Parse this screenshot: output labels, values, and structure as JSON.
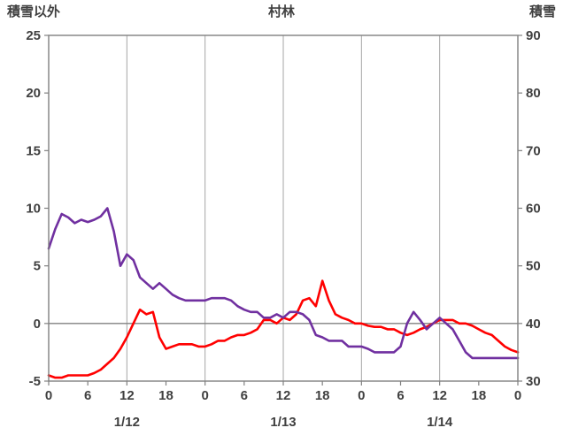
{
  "chart_data": {
    "type": "line",
    "title": "村林",
    "left_axis_label": "積雪以外",
    "right_axis_label": "積雪",
    "left_axis": {
      "min": -5,
      "max": 25,
      "ticks": [
        25,
        20,
        15,
        10,
        5,
        0,
        -5
      ]
    },
    "right_axis": {
      "min": 30,
      "max": 90,
      "ticks": [
        90,
        80,
        70,
        60,
        50,
        40,
        30
      ]
    },
    "x_axis": {
      "min": 0,
      "max": 72,
      "tick_hours": [
        0,
        6,
        12,
        18,
        24,
        30,
        36,
        42,
        48,
        54,
        60,
        66,
        72
      ],
      "tick_labels": [
        "0",
        "6",
        "12",
        "18",
        "0",
        "6",
        "12",
        "18",
        "0",
        "6",
        "12",
        "18",
        "0"
      ],
      "date_labels": [
        {
          "label": "1/12",
          "hour": 12
        },
        {
          "label": "1/13",
          "hour": 36
        },
        {
          "label": "1/14",
          "hour": 60
        }
      ],
      "gridline_hours": [
        12,
        24,
        36,
        48,
        60
      ]
    },
    "zero_line_value": 0,
    "grid": true,
    "legend": "none",
    "x": [
      0,
      1,
      2,
      3,
      4,
      5,
      6,
      7,
      8,
      9,
      10,
      11,
      12,
      13,
      14,
      15,
      16,
      17,
      18,
      19,
      20,
      21,
      22,
      23,
      24,
      25,
      26,
      27,
      28,
      29,
      30,
      31,
      32,
      33,
      34,
      35,
      36,
      37,
      38,
      39,
      40,
      41,
      42,
      43,
      44,
      45,
      46,
      47,
      48,
      49,
      50,
      51,
      52,
      53,
      54,
      55,
      56,
      57,
      58,
      59,
      60,
      61,
      62,
      63,
      64,
      65,
      66,
      67,
      68,
      69,
      70,
      71,
      72
    ],
    "series": [
      {
        "name": "red-series",
        "color": "#ff0000",
        "axis": "left",
        "values": [
          -4.5,
          -4.7,
          -4.7,
          -4.5,
          -4.5,
          -4.5,
          -4.5,
          -4.3,
          -4.0,
          -3.5,
          -3.0,
          -2.2,
          -1.2,
          0.0,
          1.2,
          0.8,
          1.0,
          -1.2,
          -2.2,
          -2.0,
          -1.8,
          -1.8,
          -1.8,
          -2.0,
          -2.0,
          -1.8,
          -1.5,
          -1.5,
          -1.2,
          -1.0,
          -1.0,
          -0.8,
          -0.5,
          0.3,
          0.3,
          0.0,
          0.5,
          0.3,
          0.8,
          2.0,
          2.2,
          1.5,
          3.7,
          2.0,
          0.8,
          0.5,
          0.3,
          0.0,
          0.0,
          -0.2,
          -0.3,
          -0.3,
          -0.5,
          -0.5,
          -0.8,
          -1.0,
          -0.8,
          -0.5,
          -0.3,
          0.0,
          0.3,
          0.3,
          0.3,
          0.0,
          0.0,
          -0.2,
          -0.5,
          -0.8,
          -1.0,
          -1.5,
          -2.0,
          -2.3,
          -2.5
        ]
      },
      {
        "name": "purple-series",
        "color": "#7030a0",
        "axis": "left",
        "values": [
          6.5,
          8.2,
          9.5,
          9.2,
          8.7,
          9.0,
          8.8,
          9.0,
          9.3,
          10.0,
          8.0,
          5.0,
          6.0,
          5.5,
          4.0,
          3.5,
          3.0,
          3.5,
          3.0,
          2.5,
          2.2,
          2.0,
          2.0,
          2.0,
          2.0,
          2.2,
          2.2,
          2.2,
          2.0,
          1.5,
          1.2,
          1.0,
          1.0,
          0.5,
          0.5,
          0.8,
          0.5,
          1.0,
          1.0,
          0.8,
          0.3,
          -1.0,
          -1.2,
          -1.5,
          -1.5,
          -1.5,
          -2.0,
          -2.0,
          -2.0,
          -2.2,
          -2.5,
          -2.5,
          -2.5,
          -2.5,
          -2.0,
          0.0,
          1.0,
          0.3,
          -0.5,
          0.0,
          0.5,
          0.0,
          -0.5,
          -1.5,
          -2.5,
          -3.0,
          -3.0,
          -3.0,
          -3.0,
          -3.0,
          -3.0,
          -3.0,
          -3.0
        ]
      }
    ],
    "colors": {
      "border": "#808080",
      "grid": "#a6a6a6",
      "zero_line": "#808080",
      "text": "#404040"
    }
  }
}
